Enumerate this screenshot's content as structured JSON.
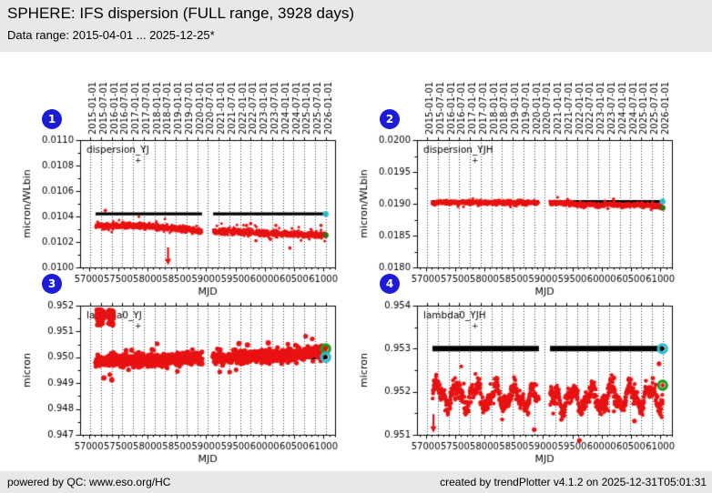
{
  "header": {
    "title": "SPHERE: IFS dispersion (FULL range, 3928 days)",
    "subtitle": "Data range: 2015-04-01 ... 2025-12-25*"
  },
  "footer": {
    "left": "powered by QC: www.eso.org/HC",
    "right": "created by trendPlotter v4.1.2 on 2025-12-31T05:01:31"
  },
  "colors": {
    "badge": "#1c1cd8",
    "red": "#e81212",
    "black": "#000000",
    "cyan": "#2bbfce",
    "green": "#1f9e1f",
    "dark_green": "#3f6d12",
    "grid": "#3a3a3a",
    "header_bg": "#e8e8e8",
    "page_bg": "#ffffff"
  },
  "badges": [
    "1",
    "2",
    "3",
    "4"
  ],
  "top_axis": {
    "labels": [
      "2015-01-01",
      "2015-07-01",
      "2016-01-01",
      "2016-07-01",
      "2017-01-01",
      "2017-07-01",
      "2018-01-01",
      "2018-07-01",
      "2019-01-01",
      "2019-07-01",
      "2020-01-01",
      "2020-07-01",
      "2021-01-01",
      "2021-07-01",
      "2022-01-01",
      "2022-07-01",
      "2023-01-01",
      "2023-07-01",
      "2024-01-01",
      "2024-07-01",
      "2025-01-01",
      "2025-07-01",
      "2026-01-01"
    ],
    "mjd": [
      57023,
      57204,
      57388,
      57570,
      57754,
      57935,
      58119,
      58300,
      58484,
      58665,
      58849,
      59031,
      59215,
      59396,
      59580,
      59761,
      59945,
      60126,
      60310,
      60492,
      60676,
      60857,
      61041
    ]
  },
  "x_axis": {
    "label": "MJD",
    "ticks": [
      57000,
      57500,
      58000,
      58500,
      59000,
      59500,
      60000,
      60500,
      61000
    ],
    "lim": [
      56850,
      61200
    ],
    "minor_step": 100
  },
  "series_range": [
    57113,
    61040
  ],
  "gap": [
    58930,
    59120
  ],
  "chart_data": [
    {
      "index": "1",
      "type": "scatter",
      "label": "dispersion_YJ",
      "label_marker": "+",
      "ylabel": "micron/WLbin",
      "xlabel": "MJD",
      "ylim": [
        0.01,
        0.011
      ],
      "yticks": [
        0.01,
        0.0102,
        0.0104,
        0.0106,
        0.0108,
        0.011
      ],
      "ydecimals": 4,
      "seed": 11,
      "black_line": {
        "value_segments": [
          [
            57113,
            58930,
            0.01042
          ],
          [
            59120,
            61040,
            0.01042
          ]
        ],
        "thickness": 3.2
      },
      "red": {
        "noise": 1.2e-05,
        "r": 1.5,
        "step": 3.2,
        "anchors": [
          [
            57113,
            0.010327
          ],
          [
            57700,
            0.01033
          ],
          [
            58100,
            0.010322
          ],
          [
            58500,
            0.010305
          ],
          [
            58930,
            0.010287
          ],
          [
            59120,
            0.010284
          ],
          [
            59420,
            0.010282
          ],
          [
            59700,
            0.010276
          ],
          [
            60000,
            0.010268
          ],
          [
            60400,
            0.010262
          ],
          [
            60750,
            0.010258
          ],
          [
            61040,
            0.010254
          ]
        ]
      },
      "outliers": [
        [
          57280,
          0.010448
        ],
        [
          59690,
          0.01033
        ],
        [
          59760,
          0.010345
        ],
        [
          60190,
          0.01033
        ],
        [
          60960,
          0.01033
        ],
        [
          59850,
          0.01021
        ],
        [
          60090,
          0.010225
        ],
        [
          60430,
          0.010152
        ],
        [
          59640,
          0.010268
        ]
      ],
      "arrows": [
        {
          "x": 58350,
          "y1": 0.010157,
          "y2": 0.010018
        }
      ],
      "end_markers": [
        {
          "x": 61040,
          "y": 0.01042,
          "color": "cyan",
          "style": "dot"
        },
        {
          "x": 61040,
          "y": 0.010254,
          "color": "dark_green",
          "style": "dot"
        }
      ]
    },
    {
      "index": "2",
      "type": "scatter",
      "label": "dispersion_YJH",
      "label_marker": "+",
      "ylabel": "micron/WLbin",
      "xlabel": "MJD",
      "ylim": [
        0.018,
        0.02
      ],
      "yticks": [
        0.018,
        0.0185,
        0.019,
        0.0195,
        0.02
      ],
      "ydecimals": 4,
      "seed": 22,
      "black_line": {
        "value_segments": [
          [
            57113,
            58930,
            0.019035
          ],
          [
            59120,
            61040,
            0.019035
          ]
        ],
        "thickness": 3.2
      },
      "red": {
        "noise": 1.6e-05,
        "r": 1.6,
        "step": 3.2,
        "anchors": [
          [
            57113,
            0.019022
          ],
          [
            57500,
            0.019018
          ],
          [
            58000,
            0.019022
          ],
          [
            58400,
            0.019015
          ],
          [
            58930,
            0.019018
          ],
          [
            59120,
            0.019015
          ],
          [
            59500,
            0.01901
          ],
          [
            59650,
            0.018965
          ],
          [
            59800,
            0.018995
          ],
          [
            60000,
            0.018975
          ],
          [
            60150,
            0.018995
          ],
          [
            60350,
            0.01897
          ],
          [
            60600,
            0.018985
          ],
          [
            60800,
            0.018975
          ],
          [
            61040,
            0.018945
          ]
        ]
      },
      "outliers": [
        [
          57160,
          0.018985
        ],
        [
          58180,
          0.018988
        ]
      ],
      "arrows": [],
      "end_markers": [
        {
          "x": 61040,
          "y": 0.019035,
          "color": "cyan",
          "style": "dot"
        },
        {
          "x": 61040,
          "y": 0.018935,
          "color": "dark_green",
          "style": "dot"
        }
      ]
    },
    {
      "index": "3",
      "type": "scatter",
      "label": "lambda0_YJ",
      "label_marker": "+",
      "ylabel": "micron",
      "xlabel": "MJD",
      "ylim": [
        0.947,
        0.952
      ],
      "yticks": [
        0.947,
        0.948,
        0.949,
        0.95,
        0.951,
        0.952
      ],
      "ydecimals": 3,
      "seed": 33,
      "black_line": {
        "value_segments": [
          [
            57113,
            58930,
            0.94992
          ],
          [
            59120,
            61040,
            0.95
          ]
        ],
        "thickness": 4.5
      },
      "red": {
        "noise": 0.00012,
        "r": 2.6,
        "step": 4,
        "anchors": [
          [
            57113,
            0.94982
          ],
          [
            57600,
            0.94988
          ],
          [
            58200,
            0.9499
          ],
          [
            58930,
            0.94998
          ],
          [
            59120,
            0.94997
          ],
          [
            59600,
            0.95
          ],
          [
            60000,
            0.95005
          ],
          [
            60500,
            0.95012
          ],
          [
            61040,
            0.95022
          ]
        ]
      },
      "clusters": [
        {
          "x0": 57130,
          "x1": 57260,
          "y0": 0.95125,
          "y1": 0.95185,
          "n": 70
        },
        {
          "x0": 57330,
          "x1": 57425,
          "y0": 0.9512,
          "y1": 0.95185,
          "n": 45
        }
      ],
      "outliers": [
        [
          57255,
          0.9492
        ],
        [
          57390,
          0.94912
        ],
        [
          59560,
          0.95053
        ],
        [
          59705,
          0.95048
        ],
        [
          60060,
          0.95056
        ]
      ],
      "arrows": [
        {
          "x": 57385,
          "y1": 0.95128,
          "y2": 0.9518
        }
      ],
      "end_markers": [
        {
          "x": 61040,
          "y": 0.95033,
          "color": "green",
          "style": "ring",
          "inner": "red"
        },
        {
          "x": 61040,
          "y": 0.95,
          "color": "cyan",
          "style": "ring",
          "inner": "black"
        }
      ]
    },
    {
      "index": "4",
      "type": "scatter",
      "label": "lambda0_YJH",
      "label_marker": "+",
      "ylabel": "micron",
      "xlabel": "MJD",
      "ylim": [
        0.951,
        0.954
      ],
      "yticks": [
        0.951,
        0.952,
        0.953,
        0.954
      ],
      "ydecimals": 3,
      "seed": 44,
      "black_line": {
        "value_segments": [
          [
            57113,
            58930,
            0.953
          ],
          [
            59120,
            61040,
            0.953
          ]
        ],
        "thickness": 6
      },
      "red": {
        "noise": 9e-05,
        "r": 2.2,
        "step": 4,
        "sine": {
          "amp": 0.00022,
          "period": 330,
          "amp2": 0.0001,
          "period2": 150
        },
        "anchors": [
          [
            57113,
            0.95195
          ],
          [
            58900,
            0.95185
          ],
          [
            59120,
            0.9518
          ],
          [
            61040,
            0.9519
          ]
        ]
      },
      "outliers": [
        [
          58850,
          0.95112
        ],
        [
          59620,
          0.95087
        ],
        [
          60210,
          0.95232
        ],
        [
          60560,
          0.95132
        ],
        [
          60980,
          0.95265
        ]
      ],
      "arrows": [
        {
          "x": 57130,
          "y1": 0.95148,
          "y2": 0.95105
        }
      ],
      "end_markers": [
        {
          "x": 61040,
          "y": 0.953,
          "color": "cyan",
          "style": "ring",
          "inner": "black"
        },
        {
          "x": 61040,
          "y": 0.95215,
          "color": "green",
          "style": "ring",
          "inner": "red"
        }
      ]
    }
  ]
}
